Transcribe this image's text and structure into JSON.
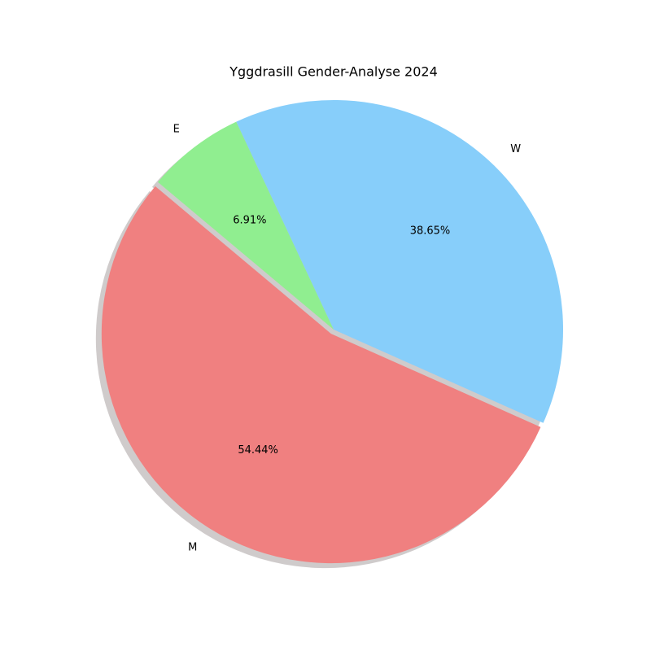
{
  "chart_data": {
    "type": "pie",
    "title": "Yggdrasill Gender-Analyse 2024",
    "slices": [
      {
        "label": "M",
        "value": 54.44,
        "pct_label": "54.44%",
        "color": "#f08080",
        "exploded": true
      },
      {
        "label": "W",
        "value": 38.65,
        "pct_label": "38.65%",
        "color": "#87cefa",
        "exploded": false
      },
      {
        "label": "E",
        "value": 6.91,
        "pct_label": "6.91%",
        "color": "#90ee90",
        "exploded": false
      }
    ],
    "start_angle": 140,
    "counterclock": true,
    "shadow": true,
    "shadow_color": "#a09898",
    "label_placement": "outside",
    "pct_placement": "inside"
  }
}
